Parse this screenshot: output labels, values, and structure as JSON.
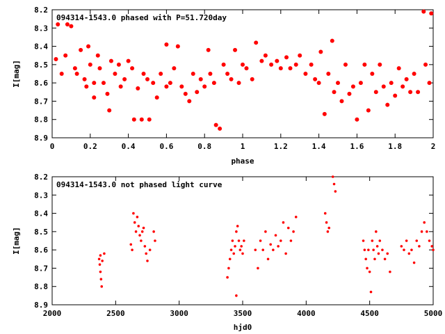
{
  "chart_data": [
    {
      "type": "scatter",
      "title": "094314-1543.0 phased with P=51.720day",
      "xlabel": "phase",
      "ylabel": "I[mag]",
      "xlim": [
        0,
        2
      ],
      "ylim": [
        8.9,
        8.2
      ],
      "x_ticks": [
        "0",
        "0.2",
        "0.4",
        "0.6",
        "0.8",
        "1",
        "1.2",
        "1.4",
        "1.6",
        "1.8",
        "2"
      ],
      "y_ticks": [
        "8.2",
        "8.3",
        "8.4",
        "8.5",
        "8.6",
        "8.7",
        "8.8",
        "8.9"
      ],
      "marker_color": "#ff0000",
      "grid": false,
      "series": [
        {
          "points": [
            [
              0.02,
              8.47
            ],
            [
              0.03,
              8.28
            ],
            [
              0.05,
              8.55
            ],
            [
              0.07,
              8.45
            ],
            [
              0.08,
              8.28
            ],
            [
              0.1,
              8.29
            ],
            [
              0.12,
              8.52
            ],
            [
              0.13,
              8.55
            ],
            [
              0.15,
              8.42
            ],
            [
              0.17,
              8.58
            ],
            [
              0.18,
              8.62
            ],
            [
              0.19,
              8.4
            ],
            [
              0.2,
              8.5
            ],
            [
              0.22,
              8.6
            ],
            [
              0.22,
              8.68
            ],
            [
              0.24,
              8.45
            ],
            [
              0.25,
              8.52
            ],
            [
              0.27,
              8.6
            ],
            [
              0.29,
              8.66
            ],
            [
              0.3,
              8.75
            ],
            [
              0.31,
              8.48
            ],
            [
              0.33,
              8.55
            ],
            [
              0.35,
              8.5
            ],
            [
              0.36,
              8.62
            ],
            [
              0.38,
              8.58
            ],
            [
              0.4,
              8.48
            ],
            [
              0.42,
              8.52
            ],
            [
              0.43,
              8.8
            ],
            [
              0.45,
              8.63
            ],
            [
              0.47,
              8.8
            ],
            [
              0.48,
              8.55
            ],
            [
              0.5,
              8.58
            ],
            [
              0.51,
              8.8
            ],
            [
              0.53,
              8.6
            ],
            [
              0.55,
              8.68
            ],
            [
              0.57,
              8.55
            ],
            [
              0.6,
              8.62
            ],
            [
              0.6,
              8.39
            ],
            [
              0.62,
              8.6
            ],
            [
              0.64,
              8.52
            ],
            [
              0.66,
              8.4
            ],
            [
              0.68,
              8.62
            ],
            [
              0.7,
              8.66
            ],
            [
              0.72,
              8.7
            ],
            [
              0.74,
              8.55
            ],
            [
              0.76,
              8.65
            ],
            [
              0.78,
              8.58
            ],
            [
              0.8,
              8.62
            ],
            [
              0.82,
              8.42
            ],
            [
              0.83,
              8.55
            ],
            [
              0.85,
              8.6
            ],
            [
              0.86,
              8.83
            ],
            [
              0.88,
              8.85
            ],
            [
              0.9,
              8.5
            ],
            [
              0.92,
              8.55
            ],
            [
              0.94,
              8.58
            ],
            [
              0.96,
              8.42
            ],
            [
              0.98,
              8.6
            ],
            [
              1.0,
              8.5
            ],
            [
              1.02,
              8.52
            ],
            [
              1.05,
              8.58
            ],
            [
              1.07,
              8.38
            ],
            [
              1.1,
              8.48
            ],
            [
              1.12,
              8.45
            ],
            [
              1.15,
              8.5
            ],
            [
              1.18,
              8.48
            ],
            [
              1.2,
              8.52
            ],
            [
              1.23,
              8.46
            ],
            [
              1.25,
              8.52
            ],
            [
              1.28,
              8.5
            ],
            [
              1.3,
              8.45
            ],
            [
              1.33,
              8.55
            ],
            [
              1.36,
              8.5
            ],
            [
              1.38,
              8.58
            ],
            [
              1.4,
              8.6
            ],
            [
              1.41,
              8.43
            ],
            [
              1.43,
              8.77
            ],
            [
              1.45,
              8.55
            ],
            [
              1.47,
              8.37
            ],
            [
              1.48,
              8.65
            ],
            [
              1.5,
              8.6
            ],
            [
              1.52,
              8.7
            ],
            [
              1.54,
              8.5
            ],
            [
              1.56,
              8.66
            ],
            [
              1.58,
              8.62
            ],
            [
              1.6,
              8.8
            ],
            [
              1.62,
              8.6
            ],
            [
              1.64,
              8.5
            ],
            [
              1.66,
              8.75
            ],
            [
              1.68,
              8.55
            ],
            [
              1.7,
              8.65
            ],
            [
              1.72,
              8.5
            ],
            [
              1.74,
              8.62
            ],
            [
              1.76,
              8.72
            ],
            [
              1.78,
              8.6
            ],
            [
              1.8,
              8.67
            ],
            [
              1.82,
              8.52
            ],
            [
              1.84,
              8.62
            ],
            [
              1.86,
              8.58
            ],
            [
              1.88,
              8.65
            ],
            [
              1.9,
              8.55
            ],
            [
              1.92,
              8.65
            ],
            [
              1.95,
              8.21
            ],
            [
              1.96,
              8.5
            ],
            [
              1.98,
              8.6
            ],
            [
              1.99,
              8.22
            ]
          ]
        }
      ]
    },
    {
      "type": "scatter",
      "title": "094314-1543.0 not phased light curve",
      "xlabel": "hjd0",
      "ylabel": "I[mag]",
      "xlim": [
        2000,
        5000
      ],
      "ylim": [
        8.9,
        8.2
      ],
      "x_ticks": [
        "2000",
        "2500",
        "3000",
        "3500",
        "4000",
        "4500",
        "5000"
      ],
      "y_ticks": [
        "8.2",
        "8.3",
        "8.4",
        "8.5",
        "8.6",
        "8.7",
        "8.8",
        "8.9"
      ],
      "marker_color": "#ff0000",
      "grid": false,
      "series": [
        {
          "points": [
            [
              2370,
              8.65
            ],
            [
              2375,
              8.68
            ],
            [
              2380,
              8.72
            ],
            [
              2385,
              8.76
            ],
            [
              2390,
              8.8
            ],
            [
              2380,
              8.63
            ],
            [
              2395,
              8.66
            ],
            [
              2410,
              8.62
            ],
            [
              2620,
              8.57
            ],
            [
              2630,
              8.6
            ],
            [
              2640,
              8.4
            ],
            [
              2650,
              8.45
            ],
            [
              2660,
              8.5
            ],
            [
              2670,
              8.42
            ],
            [
              2680,
              8.47
            ],
            [
              2690,
              8.52
            ],
            [
              2700,
              8.55
            ],
            [
              2710,
              8.5
            ],
            [
              2720,
              8.48
            ],
            [
              2730,
              8.58
            ],
            [
              2740,
              8.62
            ],
            [
              2750,
              8.66
            ],
            [
              2770,
              8.6
            ],
            [
              2800,
              8.5
            ],
            [
              2810,
              8.55
            ],
            [
              3380,
              8.75
            ],
            [
              3390,
              8.7
            ],
            [
              3400,
              8.65
            ],
            [
              3410,
              8.6
            ],
            [
              3420,
              8.55
            ],
            [
              3430,
              8.62
            ],
            [
              3440,
              8.58
            ],
            [
              3450,
              8.5
            ],
            [
              3460,
              8.47
            ],
            [
              3470,
              8.55
            ],
            [
              3480,
              8.6
            ],
            [
              3490,
              8.58
            ],
            [
              3500,
              8.62
            ],
            [
              3510,
              8.55
            ],
            [
              3450,
              8.85
            ],
            [
              3600,
              8.6
            ],
            [
              3620,
              8.7
            ],
            [
              3640,
              8.55
            ],
            [
              3660,
              8.6
            ],
            [
              3680,
              8.5
            ],
            [
              3700,
              8.65
            ],
            [
              3720,
              8.57
            ],
            [
              3740,
              8.6
            ],
            [
              3760,
              8.52
            ],
            [
              3780,
              8.58
            ],
            [
              3800,
              8.55
            ],
            [
              3820,
              8.45
            ],
            [
              3840,
              8.62
            ],
            [
              3860,
              8.48
            ],
            [
              3880,
              8.55
            ],
            [
              3900,
              8.5
            ],
            [
              3920,
              8.42
            ],
            [
              4150,
              8.4
            ],
            [
              4160,
              8.45
            ],
            [
              4170,
              8.5
            ],
            [
              4180,
              8.48
            ],
            [
              4210,
              8.2
            ],
            [
              4220,
              8.24
            ],
            [
              4230,
              8.28
            ],
            [
              4450,
              8.55
            ],
            [
              4460,
              8.6
            ],
            [
              4470,
              8.65
            ],
            [
              4480,
              8.7
            ],
            [
              4490,
              8.6
            ],
            [
              4500,
              8.72
            ],
            [
              4510,
              8.83
            ],
            [
              4520,
              8.55
            ],
            [
              4530,
              8.6
            ],
            [
              4540,
              8.65
            ],
            [
              4550,
              8.5
            ],
            [
              4560,
              8.58
            ],
            [
              4570,
              8.62
            ],
            [
              4580,
              8.55
            ],
            [
              4600,
              8.6
            ],
            [
              4620,
              8.65
            ],
            [
              4640,
              8.62
            ],
            [
              4660,
              8.72
            ],
            [
              4750,
              8.58
            ],
            [
              4770,
              8.6
            ],
            [
              4790,
              8.55
            ],
            [
              4810,
              8.62
            ],
            [
              4830,
              8.6
            ],
            [
              4850,
              8.67
            ],
            [
              4870,
              8.55
            ],
            [
              4890,
              8.58
            ],
            [
              4910,
              8.5
            ],
            [
              4930,
              8.45
            ],
            [
              4950,
              8.5
            ],
            [
              4970,
              8.55
            ],
            [
              4990,
              8.58
            ],
            [
              5000,
              8.6
            ]
          ]
        }
      ]
    }
  ]
}
